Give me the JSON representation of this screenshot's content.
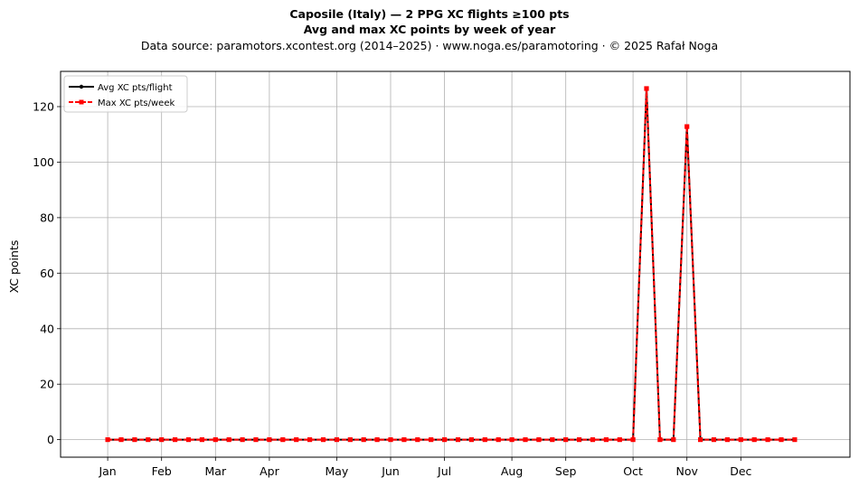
{
  "chart_data": {
    "type": "line",
    "title_line1": "Caposile (Italy)  —  2 PPG XC flights ≥100 pts",
    "title_line2": "Avg and max XC points by week of year",
    "subtitle": "Data source: paramotors.xcontest.org (2014–2025)  ·  www.noga.es/paramotoring  ·  © 2025 Rafał Noga",
    "xlabel": "",
    "ylabel": "XC points",
    "xlim": [
      -2.5,
      56.1
    ],
    "ylim": [
      -6.3,
      132.7
    ],
    "grid": true,
    "legend_position": "top-left",
    "x_ticks": [
      {
        "x": 1,
        "label": "Jan"
      },
      {
        "x": 5,
        "label": "Feb"
      },
      {
        "x": 9,
        "label": "Mar"
      },
      {
        "x": 13,
        "label": "Apr"
      },
      {
        "x": 18,
        "label": "May"
      },
      {
        "x": 22,
        "label": "Jun"
      },
      {
        "x": 26,
        "label": "Jul"
      },
      {
        "x": 31,
        "label": "Aug"
      },
      {
        "x": 35,
        "label": "Sep"
      },
      {
        "x": 40,
        "label": "Oct"
      },
      {
        "x": 44,
        "label": "Nov"
      },
      {
        "x": 48,
        "label": "Dec"
      }
    ],
    "y_ticks": [
      0,
      20,
      40,
      60,
      80,
      100,
      120
    ],
    "weeks": [
      1,
      2,
      3,
      4,
      5,
      6,
      7,
      8,
      9,
      10,
      11,
      12,
      13,
      14,
      15,
      16,
      17,
      18,
      19,
      20,
      21,
      22,
      23,
      24,
      25,
      26,
      27,
      28,
      29,
      30,
      31,
      32,
      33,
      34,
      35,
      36,
      37,
      38,
      39,
      40,
      41,
      42,
      43,
      44,
      45,
      46,
      47,
      48,
      49,
      50,
      51,
      52
    ],
    "series": [
      {
        "name": "Avg XC pts/flight",
        "color": "#000000",
        "values": [
          0,
          0,
          0,
          0,
          0,
          0,
          0,
          0,
          0,
          0,
          0,
          0,
          0,
          0,
          0,
          0,
          0,
          0,
          0,
          0,
          0,
          0,
          0,
          0,
          0,
          0,
          0,
          0,
          0,
          0,
          0,
          0,
          0,
          0,
          0,
          0,
          0,
          0,
          0,
          0,
          126.5,
          0,
          0,
          112.8,
          0,
          0,
          0,
          0,
          0,
          0,
          0,
          0
        ]
      },
      {
        "name": "Max XC pts/week",
        "color": "#ff0000",
        "values": [
          0,
          0,
          0,
          0,
          0,
          0,
          0,
          0,
          0,
          0,
          0,
          0,
          0,
          0,
          0,
          0,
          0,
          0,
          0,
          0,
          0,
          0,
          0,
          0,
          0,
          0,
          0,
          0,
          0,
          0,
          0,
          0,
          0,
          0,
          0,
          0,
          0,
          0,
          0,
          0,
          126.5,
          0,
          0,
          112.8,
          0,
          0,
          0,
          0,
          0,
          0,
          0,
          0
        ]
      }
    ]
  }
}
